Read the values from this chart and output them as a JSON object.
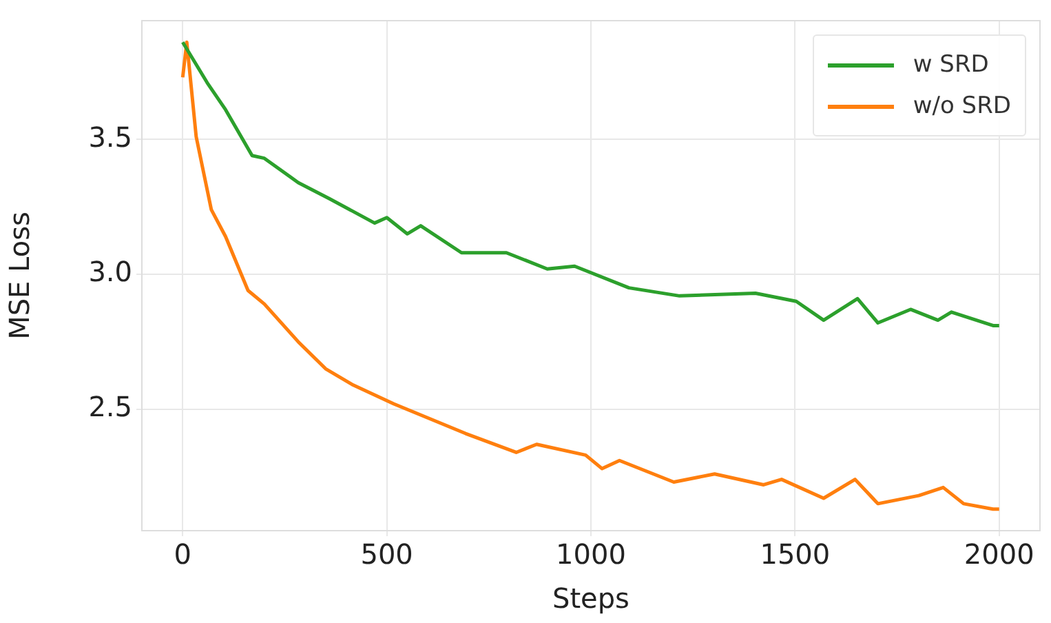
{
  "chart_data": {
    "type": "line",
    "xlabel": "Steps",
    "ylabel": "MSE Loss",
    "xlim": [
      -100,
      2100
    ],
    "ylim": [
      2.05,
      3.94
    ],
    "xticks": [
      0,
      500,
      1000,
      1500,
      2000
    ],
    "yticks": [
      2.5,
      {
        "value": 3.0,
        "label": "3.0"
      },
      3.5
    ],
    "grid": true,
    "legend": "top right",
    "marker": "none",
    "line_style": "solid",
    "series": [
      {
        "name": "w SRD",
        "color": "#2ca02c",
        "x": [
          0,
          60,
          105,
          170,
          200,
          283,
          360,
          470,
          500,
          550,
          583,
          683,
          793,
          893,
          960,
          1093,
          1217,
          1403,
          1503,
          1570,
          1653,
          1703,
          1783,
          1850,
          1883,
          1985,
          2000
        ],
        "values": [
          3.86,
          3.71,
          3.61,
          3.44,
          3.43,
          3.34,
          3.28,
          3.19,
          3.21,
          3.15,
          3.18,
          3.08,
          3.08,
          3.02,
          3.03,
          2.95,
          2.92,
          2.93,
          2.9,
          2.83,
          2.91,
          2.82,
          2.87,
          2.83,
          2.86,
          2.81,
          2.81
        ]
      },
      {
        "name": "w/o SRD",
        "color": "#ff7f0e",
        "x": [
          0,
          10,
          33,
          70,
          105,
          160,
          200,
          283,
          350,
          417,
          517,
          693,
          817,
          867,
          987,
          1027,
          1070,
          1203,
          1303,
          1423,
          1467,
          1570,
          1647,
          1703,
          1803,
          1863,
          1913,
          1985,
          2000
        ],
        "values": [
          3.73,
          3.86,
          3.51,
          3.24,
          3.14,
          2.94,
          2.89,
          2.75,
          2.65,
          2.59,
          2.52,
          2.41,
          2.34,
          2.37,
          2.33,
          2.28,
          2.31,
          2.23,
          2.26,
          2.22,
          2.24,
          2.17,
          2.24,
          2.15,
          2.18,
          2.21,
          2.15,
          2.13,
          2.13
        ]
      }
    ]
  }
}
